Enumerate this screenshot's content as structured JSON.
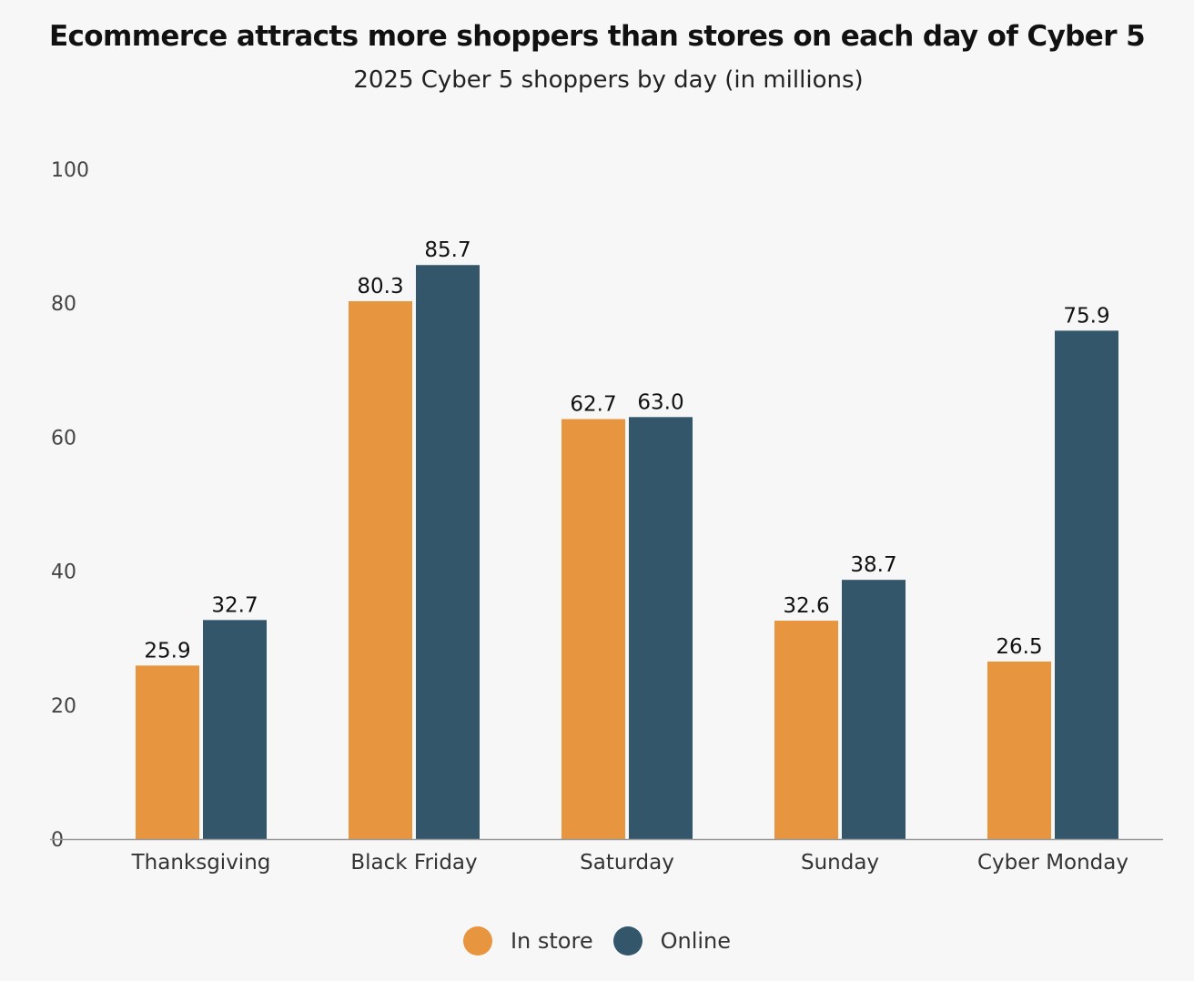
{
  "chart_data": {
    "type": "bar",
    "title": "Ecommerce attracts more shoppers than stores on each day of Cyber 5",
    "subtitle": "2025 Cyber 5 shoppers by day (in millions)",
    "categories": [
      "Thanksgiving",
      "Black Friday",
      "Saturday",
      "Sunday",
      "Cyber Monday"
    ],
    "series": [
      {
        "name": "In store",
        "color": "#e8953f",
        "values": [
          25.9,
          80.3,
          62.7,
          32.6,
          26.5
        ],
        "labels": [
          "25.9",
          "80.3",
          "62.7",
          "32.6",
          "26.5"
        ]
      },
      {
        "name": "Online",
        "color": "#33566b",
        "values": [
          32.7,
          85.7,
          63.0,
          38.7,
          75.9
        ],
        "labels": [
          "32.7",
          "85.7",
          "63.0",
          "38.7",
          "75.9"
        ]
      }
    ],
    "ylim": [
      0,
      100
    ],
    "yticks": [
      "0",
      "20",
      "40",
      "60",
      "80",
      "100"
    ],
    "xlabel": "",
    "ylabel": "",
    "grid": false,
    "legend_position": "bottom-center"
  }
}
